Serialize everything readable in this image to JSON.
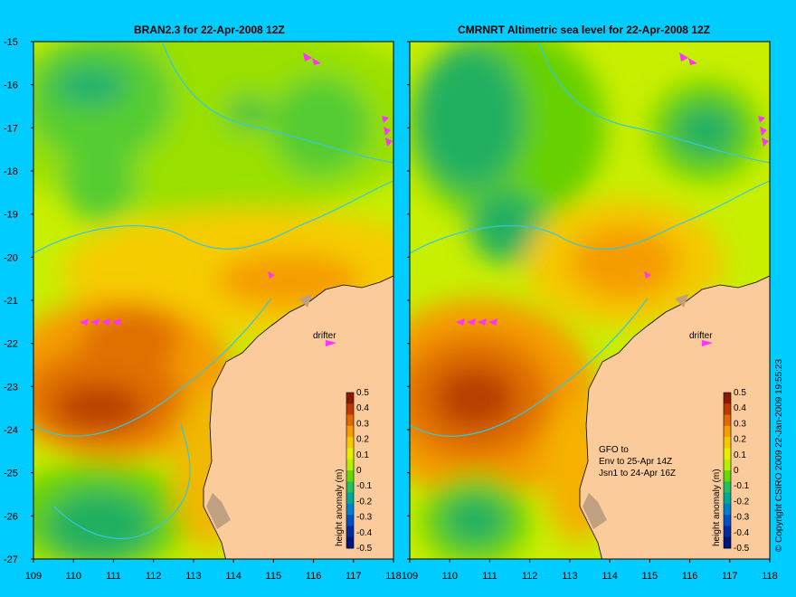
{
  "panels": [
    {
      "title": "BRAN2.3 for 22-Apr-2008 12Z",
      "drifter_label": "drifter"
    },
    {
      "title": "CMRNRT Altimetric sea level  for 22-Apr-2008 12Z",
      "drifter_label": "drifter",
      "note_lines": [
        "GFO to",
        "Env to 25-Apr 14Z",
        "Jsn1 to 24-Apr 16Z"
      ]
    }
  ],
  "axes": {
    "x_ticks": [
      "109",
      "110",
      "111",
      "112",
      "113",
      "114",
      "115",
      "116",
      "117",
      "118"
    ],
    "y_ticks": [
      "-15",
      "-16",
      "-17",
      "-18",
      "-19",
      "-20",
      "-21",
      "-22",
      "-23",
      "-24",
      "-25",
      "-26",
      "-27"
    ]
  },
  "colorbar": {
    "label": "height anomaly (m)",
    "ticks": [
      "0.5",
      "0.4",
      "0.3",
      "0.2",
      "0.1",
      "0",
      "-0.1",
      "-0.2",
      "-0.3",
      "-0.4",
      "-0.5"
    ],
    "colors": [
      "#8b1a00",
      "#c03a00",
      "#e06a00",
      "#f59c00",
      "#f5c800",
      "#e8ee00",
      "#b8ee00",
      "#66d800",
      "#22c060",
      "#00a898",
      "#0080d0",
      "#0050c8",
      "#002aa0",
      "#001480"
    ]
  },
  "credit": "© Copyright CSIRO 2009   22-Jan-2009 19:55:23",
  "colors": {
    "land": "#fbcb9b",
    "coast_mud": "#c0a080",
    "contour": "#33c8e0",
    "arrow": "#ff33ff"
  }
}
